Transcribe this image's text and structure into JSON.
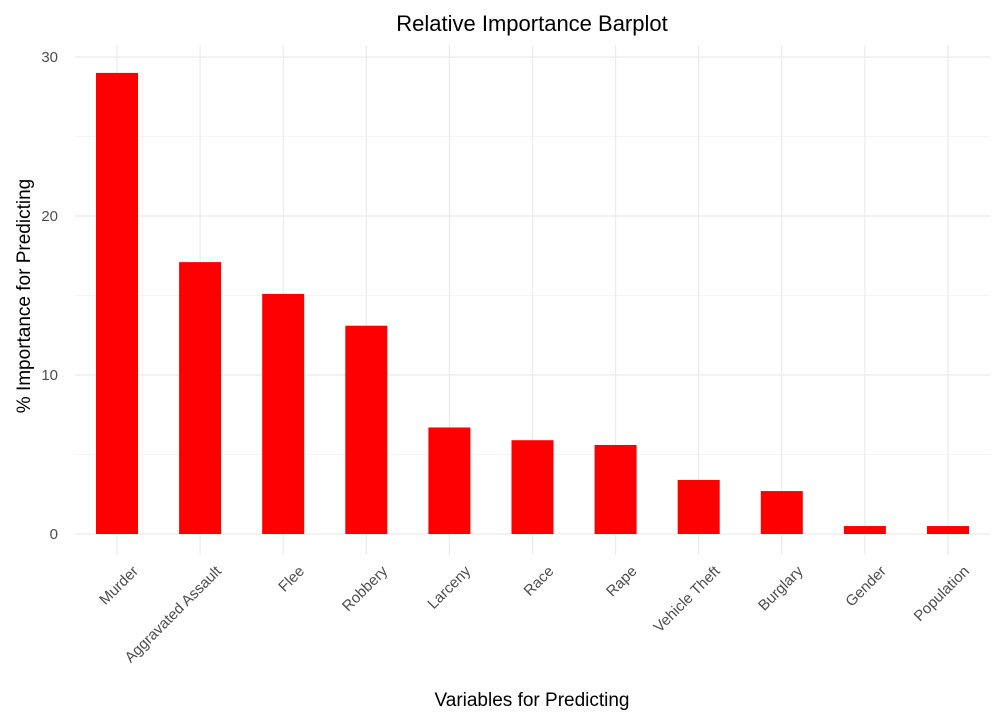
{
  "chart_data": {
    "type": "bar",
    "title": "Relative Importance Barplot",
    "xlabel": "Variables for Predicting",
    "ylabel": "% Importance for Predicting",
    "categories": [
      "Murder",
      "Aggravated Assault",
      "Flee",
      "Robbery",
      "Larceny",
      "Race",
      "Rape",
      "Vehicle Theft",
      "Burglary",
      "Gender",
      "Population"
    ],
    "values": [
      29.0,
      17.1,
      15.1,
      13.1,
      6.7,
      5.9,
      5.6,
      3.4,
      2.7,
      0.5,
      0.5
    ],
    "ylim": [
      0,
      30
    ],
    "yticks": [
      0,
      10,
      20,
      30
    ],
    "bar_color": "#ff0000",
    "grid": true
  }
}
